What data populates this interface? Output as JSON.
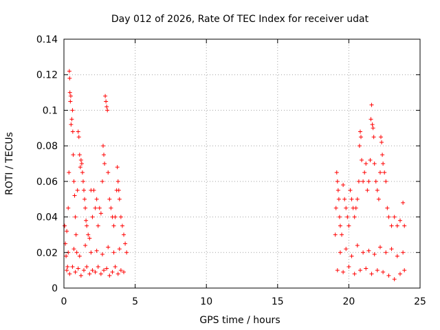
{
  "chart_data": {
    "type": "scatter",
    "title": "Day 012 of 2026, Rate Of TEC Index for receiver udat",
    "xlabel": "GPS time / hours",
    "ylabel": "ROTI / TECUs",
    "xlim": [
      0,
      25
    ],
    "ylim": [
      0,
      0.14
    ],
    "xticks": [
      0,
      5,
      10,
      15,
      20,
      25
    ],
    "xtick_labels": [
      "0",
      "5",
      "10",
      "15",
      "20",
      "25"
    ],
    "yticks": [
      0,
      0.02,
      0.04,
      0.06,
      0.08,
      0.1,
      0.12,
      0.14
    ],
    "ytick_labels": [
      "0",
      "0.02",
      "0.04",
      "0.06",
      "0.08",
      "0.1",
      "0.12",
      "0.14"
    ],
    "grid": true,
    "marker": "+",
    "color": "#ff0000",
    "series": [
      {
        "name": "ROTI",
        "points": [
          [
            0.05,
            0.035
          ],
          [
            0.1,
            0.025
          ],
          [
            0.15,
            0.018
          ],
          [
            0.2,
            0.032
          ],
          [
            0.25,
            0.012
          ],
          [
            0.3,
            0.045
          ],
          [
            0.35,
            0.065
          ],
          [
            0.38,
            0.122
          ],
          [
            0.4,
            0.118
          ],
          [
            0.42,
            0.11
          ],
          [
            0.45,
            0.105
          ],
          [
            0.48,
            0.108
          ],
          [
            0.5,
            0.092
          ],
          [
            0.55,
            0.095
          ],
          [
            0.6,
            0.1
          ],
          [
            0.62,
            0.088
          ],
          [
            0.65,
            0.075
          ],
          [
            0.7,
            0.06
          ],
          [
            0.75,
            0.052
          ],
          [
            0.8,
            0.04
          ],
          [
            0.85,
            0.03
          ],
          [
            0.9,
            0.02
          ],
          [
            0.95,
            0.055
          ],
          [
            1.0,
            0.088
          ],
          [
            1.05,
            0.085
          ],
          [
            1.1,
            0.075
          ],
          [
            1.15,
            0.068
          ],
          [
            1.2,
            0.072
          ],
          [
            1.25,
            0.07
          ],
          [
            1.3,
            0.065
          ],
          [
            1.35,
            0.06
          ],
          [
            1.4,
            0.055
          ],
          [
            1.45,
            0.05
          ],
          [
            1.5,
            0.045
          ],
          [
            1.55,
            0.038
          ],
          [
            1.6,
            0.035
          ],
          [
            1.7,
            0.03
          ],
          [
            1.8,
            0.028
          ],
          [
            1.9,
            0.055
          ],
          [
            2.0,
            0.04
          ],
          [
            2.1,
            0.055
          ],
          [
            2.2,
            0.045
          ],
          [
            2.3,
            0.05
          ],
          [
            2.4,
            0.035
          ],
          [
            2.5,
            0.045
          ],
          [
            2.6,
            0.042
          ],
          [
            2.7,
            0.06
          ],
          [
            2.75,
            0.08
          ],
          [
            2.8,
            0.075
          ],
          [
            2.85,
            0.07
          ],
          [
            2.9,
            0.108
          ],
          [
            2.95,
            0.105
          ],
          [
            3.0,
            0.102
          ],
          [
            3.05,
            0.1
          ],
          [
            3.1,
            0.065
          ],
          [
            3.2,
            0.05
          ],
          [
            3.3,
            0.045
          ],
          [
            3.4,
            0.04
          ],
          [
            3.5,
            0.035
          ],
          [
            3.6,
            0.04
          ],
          [
            3.7,
            0.055
          ],
          [
            3.75,
            0.068
          ],
          [
            3.8,
            0.06
          ],
          [
            3.85,
            0.055
          ],
          [
            3.9,
            0.05
          ],
          [
            4.0,
            0.04
          ],
          [
            4.1,
            0.035
          ],
          [
            4.2,
            0.03
          ],
          [
            4.3,
            0.025
          ],
          [
            4.4,
            0.02
          ],
          [
            0.2,
            0.01
          ],
          [
            0.4,
            0.008
          ],
          [
            0.6,
            0.012
          ],
          [
            0.8,
            0.009
          ],
          [
            1.0,
            0.011
          ],
          [
            1.2,
            0.007
          ],
          [
            1.4,
            0.01
          ],
          [
            1.6,
            0.012
          ],
          [
            1.8,
            0.008
          ],
          [
            2.0,
            0.01
          ],
          [
            2.2,
            0.009
          ],
          [
            2.4,
            0.012
          ],
          [
            2.6,
            0.008
          ],
          [
            2.8,
            0.01
          ],
          [
            3.0,
            0.011
          ],
          [
            3.2,
            0.007
          ],
          [
            3.4,
            0.009
          ],
          [
            3.6,
            0.012
          ],
          [
            3.8,
            0.008
          ],
          [
            4.0,
            0.01
          ],
          [
            4.2,
            0.009
          ],
          [
            0.3,
            0.02
          ],
          [
            0.7,
            0.022
          ],
          [
            1.1,
            0.018
          ],
          [
            1.5,
            0.024
          ],
          [
            1.9,
            0.02
          ],
          [
            2.3,
            0.021
          ],
          [
            2.7,
            0.019
          ],
          [
            3.1,
            0.023
          ],
          [
            3.5,
            0.02
          ],
          [
            3.9,
            0.022
          ],
          [
            19.05,
            0.03
          ],
          [
            19.1,
            0.045
          ],
          [
            19.15,
            0.065
          ],
          [
            19.2,
            0.06
          ],
          [
            19.25,
            0.055
          ],
          [
            19.3,
            0.05
          ],
          [
            19.35,
            0.04
          ],
          [
            19.4,
            0.035
          ],
          [
            19.5,
            0.03
          ],
          [
            19.6,
            0.058
          ],
          [
            19.7,
            0.05
          ],
          [
            19.8,
            0.045
          ],
          [
            19.9,
            0.04
          ],
          [
            20.0,
            0.035
          ],
          [
            20.1,
            0.055
          ],
          [
            20.2,
            0.05
          ],
          [
            20.3,
            0.045
          ],
          [
            20.4,
            0.04
          ],
          [
            20.5,
            0.045
          ],
          [
            20.6,
            0.05
          ],
          [
            20.7,
            0.06
          ],
          [
            20.75,
            0.08
          ],
          [
            20.8,
            0.088
          ],
          [
            20.85,
            0.085
          ],
          [
            20.9,
            0.072
          ],
          [
            21.0,
            0.06
          ],
          [
            21.1,
            0.065
          ],
          [
            21.2,
            0.07
          ],
          [
            21.3,
            0.055
          ],
          [
            21.4,
            0.06
          ],
          [
            21.5,
            0.072
          ],
          [
            21.55,
            0.095
          ],
          [
            21.6,
            0.103
          ],
          [
            21.65,
            0.092
          ],
          [
            21.7,
            0.09
          ],
          [
            21.75,
            0.085
          ],
          [
            21.8,
            0.07
          ],
          [
            21.9,
            0.06
          ],
          [
            22.0,
            0.055
          ],
          [
            22.1,
            0.05
          ],
          [
            22.2,
            0.065
          ],
          [
            22.25,
            0.085
          ],
          [
            22.3,
            0.082
          ],
          [
            22.35,
            0.075
          ],
          [
            22.4,
            0.07
          ],
          [
            22.5,
            0.065
          ],
          [
            22.6,
            0.06
          ],
          [
            22.7,
            0.045
          ],
          [
            22.8,
            0.04
          ],
          [
            23.0,
            0.035
          ],
          [
            23.2,
            0.04
          ],
          [
            23.4,
            0.035
          ],
          [
            23.6,
            0.038
          ],
          [
            23.8,
            0.048
          ],
          [
            23.9,
            0.035
          ],
          [
            19.2,
            0.01
          ],
          [
            19.6,
            0.009
          ],
          [
            20.0,
            0.012
          ],
          [
            20.4,
            0.008
          ],
          [
            20.8,
            0.01
          ],
          [
            21.2,
            0.011
          ],
          [
            21.6,
            0.008
          ],
          [
            22.0,
            0.01
          ],
          [
            22.4,
            0.009
          ],
          [
            22.8,
            0.007
          ],
          [
            23.2,
            0.005
          ],
          [
            23.6,
            0.008
          ],
          [
            23.9,
            0.01
          ],
          [
            19.4,
            0.02
          ],
          [
            19.8,
            0.022
          ],
          [
            20.2,
            0.018
          ],
          [
            20.6,
            0.024
          ],
          [
            21.0,
            0.02
          ],
          [
            21.4,
            0.021
          ],
          [
            21.8,
            0.019
          ],
          [
            22.2,
            0.023
          ],
          [
            22.6,
            0.02
          ],
          [
            23.0,
            0.022
          ],
          [
            23.4,
            0.018
          ],
          [
            23.8,
            0.02
          ]
        ]
      }
    ]
  }
}
